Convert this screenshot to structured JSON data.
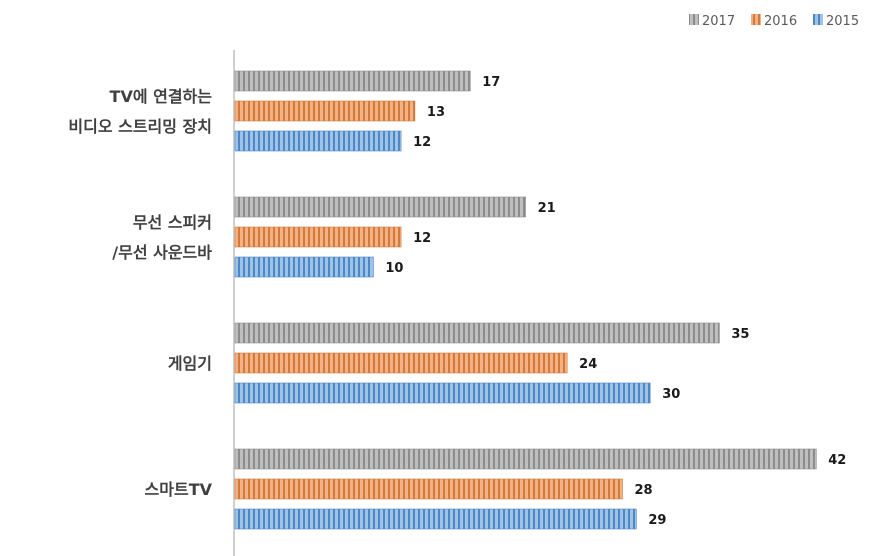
{
  "chart_data": {
    "type": "bar",
    "orientation": "horizontal",
    "categories": [
      [
        "TV에 연결하는",
        "비디오 스트리밍 장치"
      ],
      [
        "무선 스피커",
        "/무선 사운드바"
      ],
      [
        "게임기"
      ],
      [
        "스마트TV"
      ]
    ],
    "series": [
      {
        "name": "2017",
        "color": "#bfbfbf",
        "stripe": "#8c8c8c",
        "values": [
          17,
          21,
          35,
          42
        ]
      },
      {
        "name": "2016",
        "color": "#f4b183",
        "stripe": "#d07a3c",
        "values": [
          13,
          12,
          24,
          28
        ]
      },
      {
        "name": "2015",
        "color": "#9dc3e6",
        "stripe": "#4f86c6",
        "values": [
          12,
          10,
          30,
          29
        ]
      }
    ],
    "legend_order": [
      "2017",
      "2016",
      "2015"
    ],
    "legend_position": "top-right",
    "data_labels": true,
    "grid": false,
    "xlim": [
      0,
      50
    ]
  }
}
